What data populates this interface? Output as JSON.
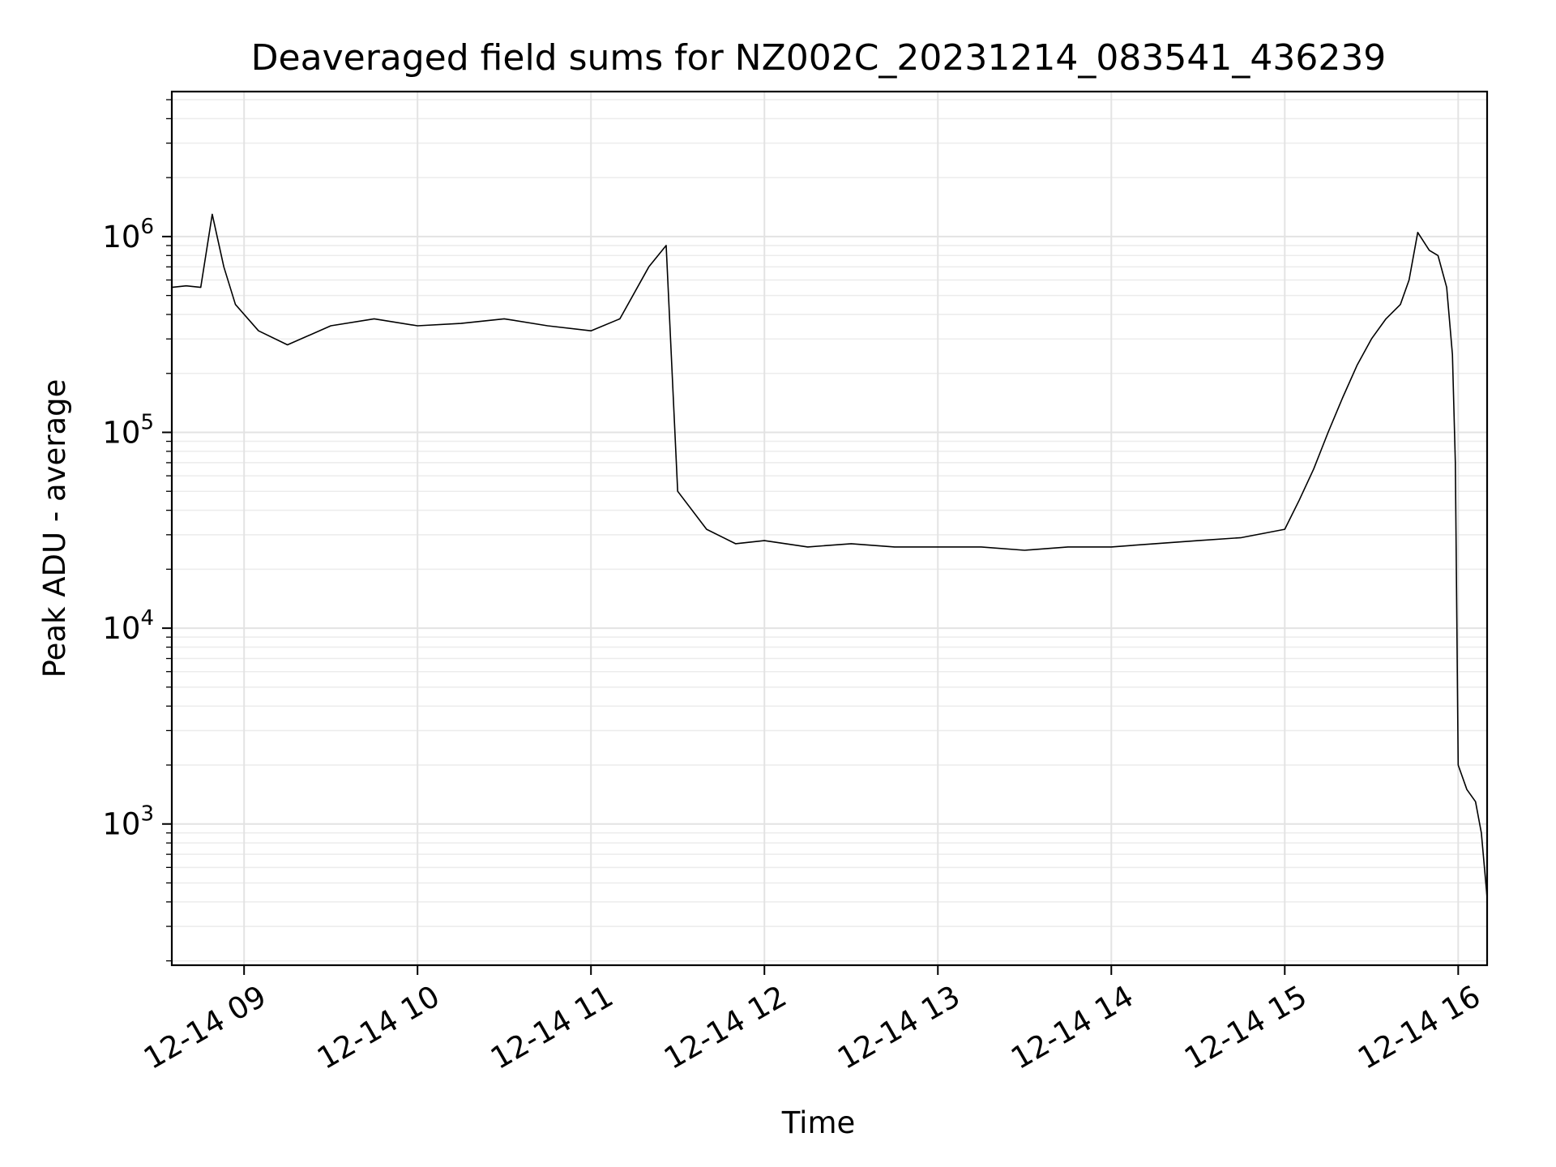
{
  "chart_data": {
    "type": "line",
    "title": "Deaveraged field sums for NZ002C_20231214_083541_436239",
    "xlabel": "Time",
    "ylabel": "Peak ADU - average",
    "yscale": "log",
    "grid": "major and minor",
    "line_color": "#000000",
    "xlim": [
      "2023-12-14 08:35",
      "2023-12-14 16:10"
    ],
    "ylim": [
      190,
      5500000
    ],
    "x_ticks": [
      {
        "value": "2023-12-14 09:00",
        "label": "12-14 09"
      },
      {
        "value": "2023-12-14 10:00",
        "label": "12-14 10"
      },
      {
        "value": "2023-12-14 11:00",
        "label": "12-14 11"
      },
      {
        "value": "2023-12-14 12:00",
        "label": "12-14 12"
      },
      {
        "value": "2023-12-14 13:00",
        "label": "12-14 13"
      },
      {
        "value": "2023-12-14 14:00",
        "label": "12-14 14"
      },
      {
        "value": "2023-12-14 15:00",
        "label": "12-14 15"
      },
      {
        "value": "2023-12-14 16:00",
        "label": "12-14 16"
      }
    ],
    "y_ticks": [
      {
        "value": 1000,
        "base": "10",
        "exp": "3"
      },
      {
        "value": 10000,
        "base": "10",
        "exp": "4"
      },
      {
        "value": 100000,
        "base": "10",
        "exp": "5"
      },
      {
        "value": 1000000,
        "base": "10",
        "exp": "6"
      }
    ],
    "series": [
      {
        "x": [
          "2023-12-14 08:35",
          "2023-12-14 08:40",
          "2023-12-14 08:45",
          "2023-12-14 08:49",
          "2023-12-14 08:53",
          "2023-12-14 08:57",
          "2023-12-14 09:05",
          "2023-12-14 09:15",
          "2023-12-14 09:30",
          "2023-12-14 09:45",
          "2023-12-14 10:00",
          "2023-12-14 10:15",
          "2023-12-14 10:30",
          "2023-12-14 10:45",
          "2023-12-14 11:00",
          "2023-12-14 11:10",
          "2023-12-14 11:20",
          "2023-12-14 11:26",
          "2023-12-14 11:30",
          "2023-12-14 11:40",
          "2023-12-14 11:50",
          "2023-12-14 12:00",
          "2023-12-14 12:15",
          "2023-12-14 12:30",
          "2023-12-14 12:45",
          "2023-12-14 13:00",
          "2023-12-14 13:15",
          "2023-12-14 13:30",
          "2023-12-14 13:45",
          "2023-12-14 14:00",
          "2023-12-14 14:15",
          "2023-12-14 14:30",
          "2023-12-14 14:45",
          "2023-12-14 15:00",
          "2023-12-14 15:05",
          "2023-12-14 15:10",
          "2023-12-14 15:15",
          "2023-12-14 15:20",
          "2023-12-14 15:25",
          "2023-12-14 15:30",
          "2023-12-14 15:35",
          "2023-12-14 15:40",
          "2023-12-14 15:43",
          "2023-12-14 15:46",
          "2023-12-14 15:50",
          "2023-12-14 15:53",
          "2023-12-14 15:56",
          "2023-12-14 15:58",
          "2023-12-14 15:59",
          "2023-12-14 16:00",
          "2023-12-14 16:03",
          "2023-12-14 16:06",
          "2023-12-14 16:08",
          "2023-12-14 16:10"
        ],
        "y": [
          550000,
          560000,
          550000,
          1300000,
          700000,
          450000,
          330000,
          280000,
          350000,
          380000,
          350000,
          360000,
          380000,
          350000,
          330000,
          380000,
          700000,
          900000,
          50000,
          32000,
          27000,
          28000,
          26000,
          27000,
          26000,
          26000,
          26000,
          25000,
          26000,
          26000,
          27000,
          28000,
          29000,
          32000,
          45000,
          65000,
          100000,
          150000,
          220000,
          300000,
          380000,
          450000,
          600000,
          1050000,
          850000,
          800000,
          550000,
          250000,
          70000,
          2000,
          1500,
          1300,
          900,
          420
        ]
      }
    ]
  }
}
